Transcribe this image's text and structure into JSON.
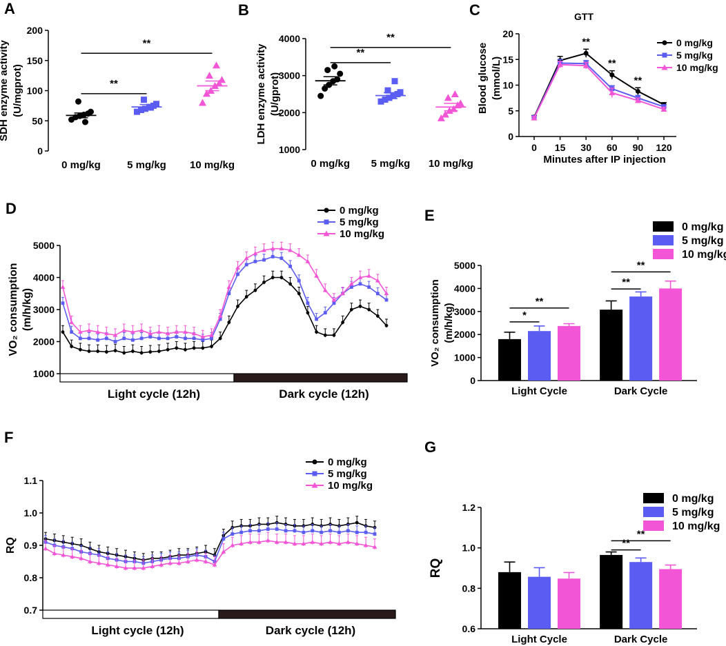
{
  "colors": {
    "dose0": "#000000",
    "dose5": "#5b5cf2",
    "dose10": "#f255d5"
  },
  "chart_data": [
    {
      "panel": "A",
      "type": "scatter",
      "ylabel": "SDH enzyme activity\n(U/mgprot)",
      "ylim": [
        0,
        200
      ],
      "yticks": [
        0,
        50,
        100,
        150,
        200
      ],
      "categories": [
        "0 mg/kg",
        "5 mg/kg",
        "10 mg/kg"
      ],
      "series": [
        {
          "name": "0 mg/kg",
          "mean": 59,
          "sem": 4,
          "points": [
            52,
            56,
            58,
            60,
            62,
            65,
            82,
            48
          ]
        },
        {
          "name": "5 mg/kg",
          "mean": 73,
          "sem": 4,
          "points": [
            65,
            68,
            70,
            73,
            75,
            78,
            85,
            72
          ]
        },
        {
          "name": "10 mg/kg",
          "mean": 108,
          "sem": 8,
          "points": [
            80,
            95,
            100,
            108,
            112,
            118,
            125,
            142
          ]
        }
      ],
      "annotations": [
        {
          "label": "**",
          "from": "0 mg/kg",
          "to": "5 mg/kg",
          "y": 95
        },
        {
          "label": "**",
          "from": "0 mg/kg",
          "to": "10 mg/kg",
          "y": 162
        }
      ]
    },
    {
      "panel": "B",
      "type": "scatter",
      "ylabel": "LDH enzyme activity\n(U/gprot)",
      "ylim": [
        1000,
        4000
      ],
      "yticks": [
        1000,
        2000,
        3000,
        4000
      ],
      "categories": [
        "0 mg/kg",
        "5 mg/kg",
        "10 mg/kg"
      ],
      "series": [
        {
          "name": "0 mg/kg",
          "mean": 2860,
          "sem": 110,
          "points": [
            2450,
            2650,
            2750,
            2850,
            2900,
            3050,
            3150,
            3250
          ]
        },
        {
          "name": "5 mg/kg",
          "mean": 2460,
          "sem": 80,
          "points": [
            2300,
            2350,
            2400,
            2450,
            2500,
            2550,
            2600,
            2850
          ]
        },
        {
          "name": "10 mg/kg",
          "mean": 2150,
          "sem": 100,
          "points": [
            1850,
            1950,
            2050,
            2100,
            2200,
            2250,
            2400,
            2500
          ]
        }
      ],
      "annotations": [
        {
          "label": "**",
          "from": "0 mg/kg",
          "to": "5 mg/kg",
          "y": 3350
        },
        {
          "label": "**",
          "from": "0 mg/kg",
          "to": "10 mg/kg",
          "y": 3760
        }
      ]
    },
    {
      "panel": "C",
      "type": "line",
      "title": "GTT",
      "xlabel": "Minutes after IP injection",
      "ylabel": "Blood glucose\n(mmol/L)",
      "ylim": [
        0,
        20
      ],
      "yticks": [
        0,
        5,
        10,
        15,
        20
      ],
      "x": [
        0,
        15,
        30,
        60,
        90,
        120
      ],
      "series": [
        {
          "name": "0 mg/kg",
          "values": [
            3.8,
            14.8,
            16.2,
            12.0,
            8.8,
            6.2
          ],
          "err": [
            0.3,
            0.8,
            0.8,
            0.8,
            0.7,
            0.4
          ]
        },
        {
          "name": "5 mg/kg",
          "values": [
            3.7,
            14.3,
            14.2,
            9.3,
            7.5,
            5.8
          ],
          "err": [
            0.3,
            0.7,
            0.6,
            0.6,
            0.5,
            0.4
          ]
        },
        {
          "name": "10 mg/kg",
          "values": [
            3.6,
            14.0,
            13.8,
            8.5,
            7.0,
            5.3
          ],
          "err": [
            0.3,
            0.6,
            0.6,
            0.9,
            0.5,
            0.4
          ]
        }
      ],
      "annotations": [
        {
          "label": "**",
          "x": 30,
          "y": 17.8
        },
        {
          "label": "**",
          "x": 60,
          "y": 13.6
        },
        {
          "label": "**",
          "x": 90,
          "y": 10.3
        }
      ]
    },
    {
      "panel": "D",
      "type": "line",
      "ylabel": "VO₂ consumption\n(m/h/kg)",
      "ylim": [
        1000,
        5000
      ],
      "yticks": [
        1000,
        2000,
        3000,
        4000,
        5000
      ],
      "cycle_labels": [
        "Light cycle (12h)",
        "Dark cycle (12h)"
      ],
      "legend": [
        "0 mg/kg",
        "5 mg/kg",
        "10 mg/kg"
      ],
      "series": [
        {
          "name": "0 mg/kg",
          "values": [
            2300,
            1850,
            1750,
            1700,
            1700,
            1680,
            1720,
            1650,
            1700,
            1650,
            1680,
            1700,
            1750,
            1800,
            1750,
            1800,
            1800,
            1850,
            2100,
            2600,
            3100,
            3400,
            3600,
            3850,
            4000,
            4000,
            3800,
            3500,
            2900,
            2300,
            2200,
            2200,
            2600,
            3000,
            3100,
            3000,
            2800,
            2500
          ],
          "err": 200
        },
        {
          "name": "5 mg/kg",
          "values": [
            3200,
            2300,
            2100,
            2100,
            2050,
            2100,
            2000,
            2100,
            2050,
            2100,
            2150,
            2100,
            2100,
            2150,
            2100,
            2100,
            2050,
            2100,
            2700,
            3500,
            4100,
            4400,
            4500,
            4550,
            4650,
            4600,
            4350,
            3900,
            3200,
            2700,
            2900,
            3200,
            3500,
            3700,
            3800,
            3700,
            3500,
            3300
          ],
          "err": 180
        },
        {
          "name": "10 mg/kg",
          "values": [
            3700,
            2600,
            2300,
            2350,
            2300,
            2250,
            2200,
            2350,
            2300,
            2350,
            2250,
            2300,
            2250,
            2300,
            2300,
            2250,
            2150,
            2200,
            2800,
            3700,
            4300,
            4600,
            4750,
            4850,
            4900,
            4900,
            4850,
            4700,
            4500,
            4050,
            3600,
            3300,
            3500,
            3800,
            4000,
            4050,
            3900,
            3500
          ],
          "err": 200
        }
      ]
    },
    {
      "panel": "E",
      "type": "bar",
      "ylabel": "VO₂ consumption\n(m/h/kg)",
      "ylim": [
        0,
        5000
      ],
      "yticks": [
        0,
        1000,
        2000,
        3000,
        4000,
        5000
      ],
      "categories": [
        "Light Cycle",
        "Dark Cycle"
      ],
      "series": [
        {
          "name": "0 mg/kg",
          "values": [
            1800,
            3080
          ],
          "err": [
            300,
            380
          ]
        },
        {
          "name": "5 mg/kg",
          "values": [
            2150,
            3650
          ],
          "err": [
            220,
            200
          ]
        },
        {
          "name": "10 mg/kg",
          "values": [
            2370,
            4000
          ],
          "err": [
            100,
            320
          ]
        }
      ],
      "annotations": [
        {
          "label": "*",
          "category": "Light Cycle",
          "from": "0 mg/kg",
          "to": "5 mg/kg",
          "y": 2550
        },
        {
          "label": "**",
          "category": "Light Cycle",
          "from": "0 mg/kg",
          "to": "10 mg/kg",
          "y": 3150
        },
        {
          "label": "**",
          "category": "Dark Cycle",
          "from": "0 mg/kg",
          "to": "5 mg/kg",
          "y": 3980
        },
        {
          "label": "**",
          "category": "Dark Cycle",
          "from": "0 mg/kg",
          "to": "10 mg/kg",
          "y": 4720
        }
      ]
    },
    {
      "panel": "F",
      "type": "line",
      "ylabel": "RQ",
      "ylim": [
        0.7,
        1.1
      ],
      "yticks": [
        0.7,
        0.8,
        0.9,
        1.0,
        1.1
      ],
      "cycle_labels": [
        "Light cycle (12h)",
        "Dark cycle (12h)"
      ],
      "legend": [
        "0 mg/kg",
        "5 mg/kg",
        "10 mg/kg"
      ],
      "series": [
        {
          "name": "0 mg/kg",
          "values": [
            0.92,
            0.915,
            0.91,
            0.905,
            0.9,
            0.89,
            0.88,
            0.875,
            0.87,
            0.865,
            0.86,
            0.855,
            0.86,
            0.86,
            0.865,
            0.87,
            0.87,
            0.875,
            0.88,
            0.87,
            0.93,
            0.955,
            0.96,
            0.96,
            0.965,
            0.965,
            0.97,
            0.965,
            0.96,
            0.96,
            0.965,
            0.96,
            0.965,
            0.96,
            0.965,
            0.97,
            0.96,
            0.955
          ],
          "err": 0.02
        },
        {
          "name": "5 mg/kg",
          "values": [
            0.91,
            0.9,
            0.895,
            0.89,
            0.88,
            0.875,
            0.87,
            0.86,
            0.855,
            0.85,
            0.85,
            0.845,
            0.85,
            0.855,
            0.86,
            0.86,
            0.865,
            0.87,
            0.865,
            0.85,
            0.92,
            0.935,
            0.94,
            0.945,
            0.945,
            0.95,
            0.95,
            0.945,
            0.945,
            0.94,
            0.945,
            0.94,
            0.945,
            0.94,
            0.945,
            0.94,
            0.94,
            0.935
          ],
          "err": 0.02
        },
        {
          "name": "10 mg/kg",
          "values": [
            0.89,
            0.875,
            0.87,
            0.865,
            0.86,
            0.85,
            0.845,
            0.84,
            0.835,
            0.83,
            0.83,
            0.83,
            0.835,
            0.84,
            0.845,
            0.845,
            0.85,
            0.855,
            0.85,
            0.84,
            0.88,
            0.9,
            0.905,
            0.91,
            0.91,
            0.915,
            0.91,
            0.91,
            0.905,
            0.905,
            0.91,
            0.905,
            0.91,
            0.905,
            0.91,
            0.905,
            0.9,
            0.895
          ],
          "err": 0.025
        }
      ]
    },
    {
      "panel": "G",
      "type": "bar",
      "ylabel": "RQ",
      "ylim": [
        0.6,
        1.2
      ],
      "yticks": [
        0.6,
        0.8,
        1.0,
        1.2
      ],
      "categories": [
        "Light Cycle",
        "Dark Cycle"
      ],
      "series": [
        {
          "name": "0 mg/kg",
          "values": [
            0.88,
            0.965
          ],
          "err": [
            0.05,
            0.015
          ]
        },
        {
          "name": "5 mg/kg",
          "values": [
            0.857,
            0.93
          ],
          "err": [
            0.045,
            0.02
          ]
        },
        {
          "name": "10 mg/kg",
          "values": [
            0.848,
            0.895
          ],
          "err": [
            0.03,
            0.02
          ]
        }
      ],
      "annotations": [
        {
          "label": "**",
          "category": "Dark Cycle",
          "from": "0 mg/kg",
          "to": "5 mg/kg",
          "y": 0.99
        },
        {
          "label": "**",
          "category": "Dark Cycle",
          "from": "0 mg/kg",
          "to": "10 mg/kg",
          "y": 1.035
        }
      ]
    }
  ]
}
